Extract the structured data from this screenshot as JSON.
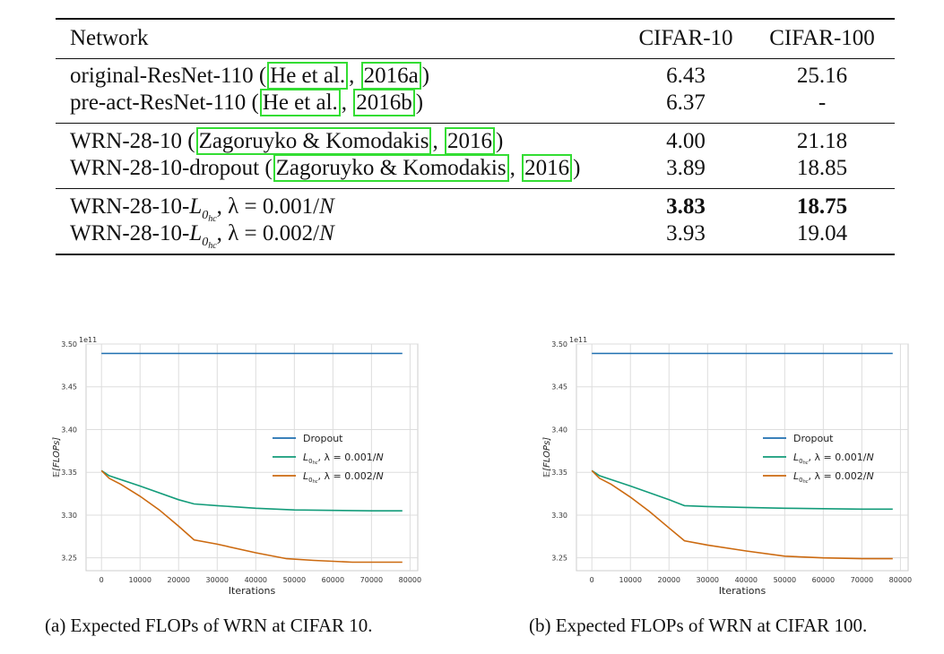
{
  "table": {
    "headers": [
      "Network",
      "CIFAR-10",
      "CIFAR-100"
    ],
    "rows": [
      {
        "prefix": "original-ResNet-110 (",
        "cite1": "He et al.",
        "sep": ", ",
        "cite2": "2016a",
        "suffix": ")",
        "c10": "6.43",
        "c100": "25.16"
      },
      {
        "prefix": "pre-act-ResNet-110 (",
        "cite1": "He et al.",
        "sep": ", ",
        "cite2": "2016b",
        "suffix": ")",
        "c10": "6.37",
        "c100": "-"
      },
      {
        "prefix": "WRN-28-10 (",
        "cite1": "Zagoruyko & Komodakis",
        "sep": ", ",
        "cite2": "2016",
        "suffix": ")",
        "c10": "4.00",
        "c100": "21.18"
      },
      {
        "prefix": "WRN-28-10-dropout (",
        "cite1": "Zagoruyko & Komodakis",
        "sep": ", ",
        "cite2": "2016",
        "suffix": ")",
        "c10": "3.89",
        "c100": "18.85"
      },
      {
        "prefix": "WRN-28-10-",
        "L": "L",
        "sub0": "0",
        "subhc": "hc",
        "mid": ", λ = 0.001/",
        "N": "N",
        "c10": "3.83",
        "c100": "18.75"
      },
      {
        "prefix": "WRN-28-10-",
        "L": "L",
        "sub0": "0",
        "subhc": "hc",
        "mid": ", λ = 0.002/",
        "N": "N",
        "c10": "3.93",
        "c100": "19.04"
      }
    ]
  },
  "chart_data": [
    {
      "type": "line",
      "caption": "(a) Expected FLOPs of WRN at CIFAR 10.",
      "xlabel": "Iterations",
      "ylabel": "𝔼[FLOPs]",
      "offset_label": "1e11",
      "xlim": [
        -4000,
        82000
      ],
      "ylim": [
        3.235,
        3.5
      ],
      "xticks": [
        0,
        10000,
        20000,
        30000,
        40000,
        50000,
        60000,
        70000,
        80000
      ],
      "yticks": [
        3.25,
        3.3,
        3.35,
        3.4,
        3.45,
        3.5
      ],
      "ytick_labels": [
        "3.25",
        "3.30",
        "3.35",
        "3.40",
        "3.45",
        "3.50"
      ],
      "legend": {
        "placement": "center-right",
        "entries": [
          "Dropout",
          "L0hc, λ = 0.001/N",
          "L0hc, λ = 0.002/N"
        ]
      },
      "series": [
        {
          "name": "Dropout",
          "color": "#1f6fb0",
          "x": [
            0,
            78000
          ],
          "y": [
            3.489,
            3.489
          ]
        },
        {
          "name": "L0hc, λ = 0.001/N",
          "color": "#139c7a",
          "x": [
            0,
            2000,
            10000,
            20000,
            24000,
            30000,
            40000,
            50000,
            60000,
            70000,
            78000
          ],
          "y": [
            3.352,
            3.346,
            3.334,
            3.318,
            3.313,
            3.311,
            3.308,
            3.306,
            3.3055,
            3.305,
            3.305
          ]
        },
        {
          "name": "L0hc, λ = 0.002/N",
          "color": "#cc6a10",
          "x": [
            0,
            2000,
            5000,
            10000,
            15000,
            20000,
            24000,
            30000,
            40000,
            48000,
            55000,
            65000,
            78000
          ],
          "y": [
            3.352,
            3.343,
            3.336,
            3.322,
            3.306,
            3.287,
            3.271,
            3.266,
            3.256,
            3.249,
            3.247,
            3.245,
            3.245
          ]
        }
      ]
    },
    {
      "type": "line",
      "caption": "(b) Expected FLOPs of WRN at CIFAR 100.",
      "xlabel": "Iterations",
      "ylabel": "𝔼[FLOPs]",
      "offset_label": "1e11",
      "xlim": [
        -4000,
        82000
      ],
      "ylim": [
        3.235,
        3.5
      ],
      "xticks": [
        0,
        10000,
        20000,
        30000,
        40000,
        50000,
        60000,
        70000,
        80000
      ],
      "yticks": [
        3.25,
        3.3,
        3.35,
        3.4,
        3.45,
        3.5
      ],
      "ytick_labels": [
        "3.25",
        "3.30",
        "3.35",
        "3.40",
        "3.45",
        "3.50"
      ],
      "legend": {
        "placement": "center-right",
        "entries": [
          "Dropout",
          "L0hc, λ = 0.001/N",
          "L0hc, λ = 0.002/N"
        ]
      },
      "series": [
        {
          "name": "Dropout",
          "color": "#1f6fb0",
          "x": [
            0,
            78000
          ],
          "y": [
            3.489,
            3.489
          ]
        },
        {
          "name": "L0hc, λ = 0.001/N",
          "color": "#139c7a",
          "x": [
            0,
            2000,
            10000,
            20000,
            24000,
            30000,
            40000,
            50000,
            60000,
            70000,
            78000
          ],
          "y": [
            3.352,
            3.346,
            3.334,
            3.318,
            3.311,
            3.31,
            3.309,
            3.308,
            3.3075,
            3.307,
            3.307
          ]
        },
        {
          "name": "L0hc, λ = 0.002/N",
          "color": "#cc6a10",
          "x": [
            0,
            2000,
            5000,
            10000,
            15000,
            20000,
            24000,
            30000,
            40000,
            50000,
            60000,
            70000,
            78000
          ],
          "y": [
            3.352,
            3.343,
            3.336,
            3.321,
            3.304,
            3.285,
            3.27,
            3.265,
            3.258,
            3.252,
            3.25,
            3.249,
            3.249
          ]
        }
      ]
    }
  ]
}
